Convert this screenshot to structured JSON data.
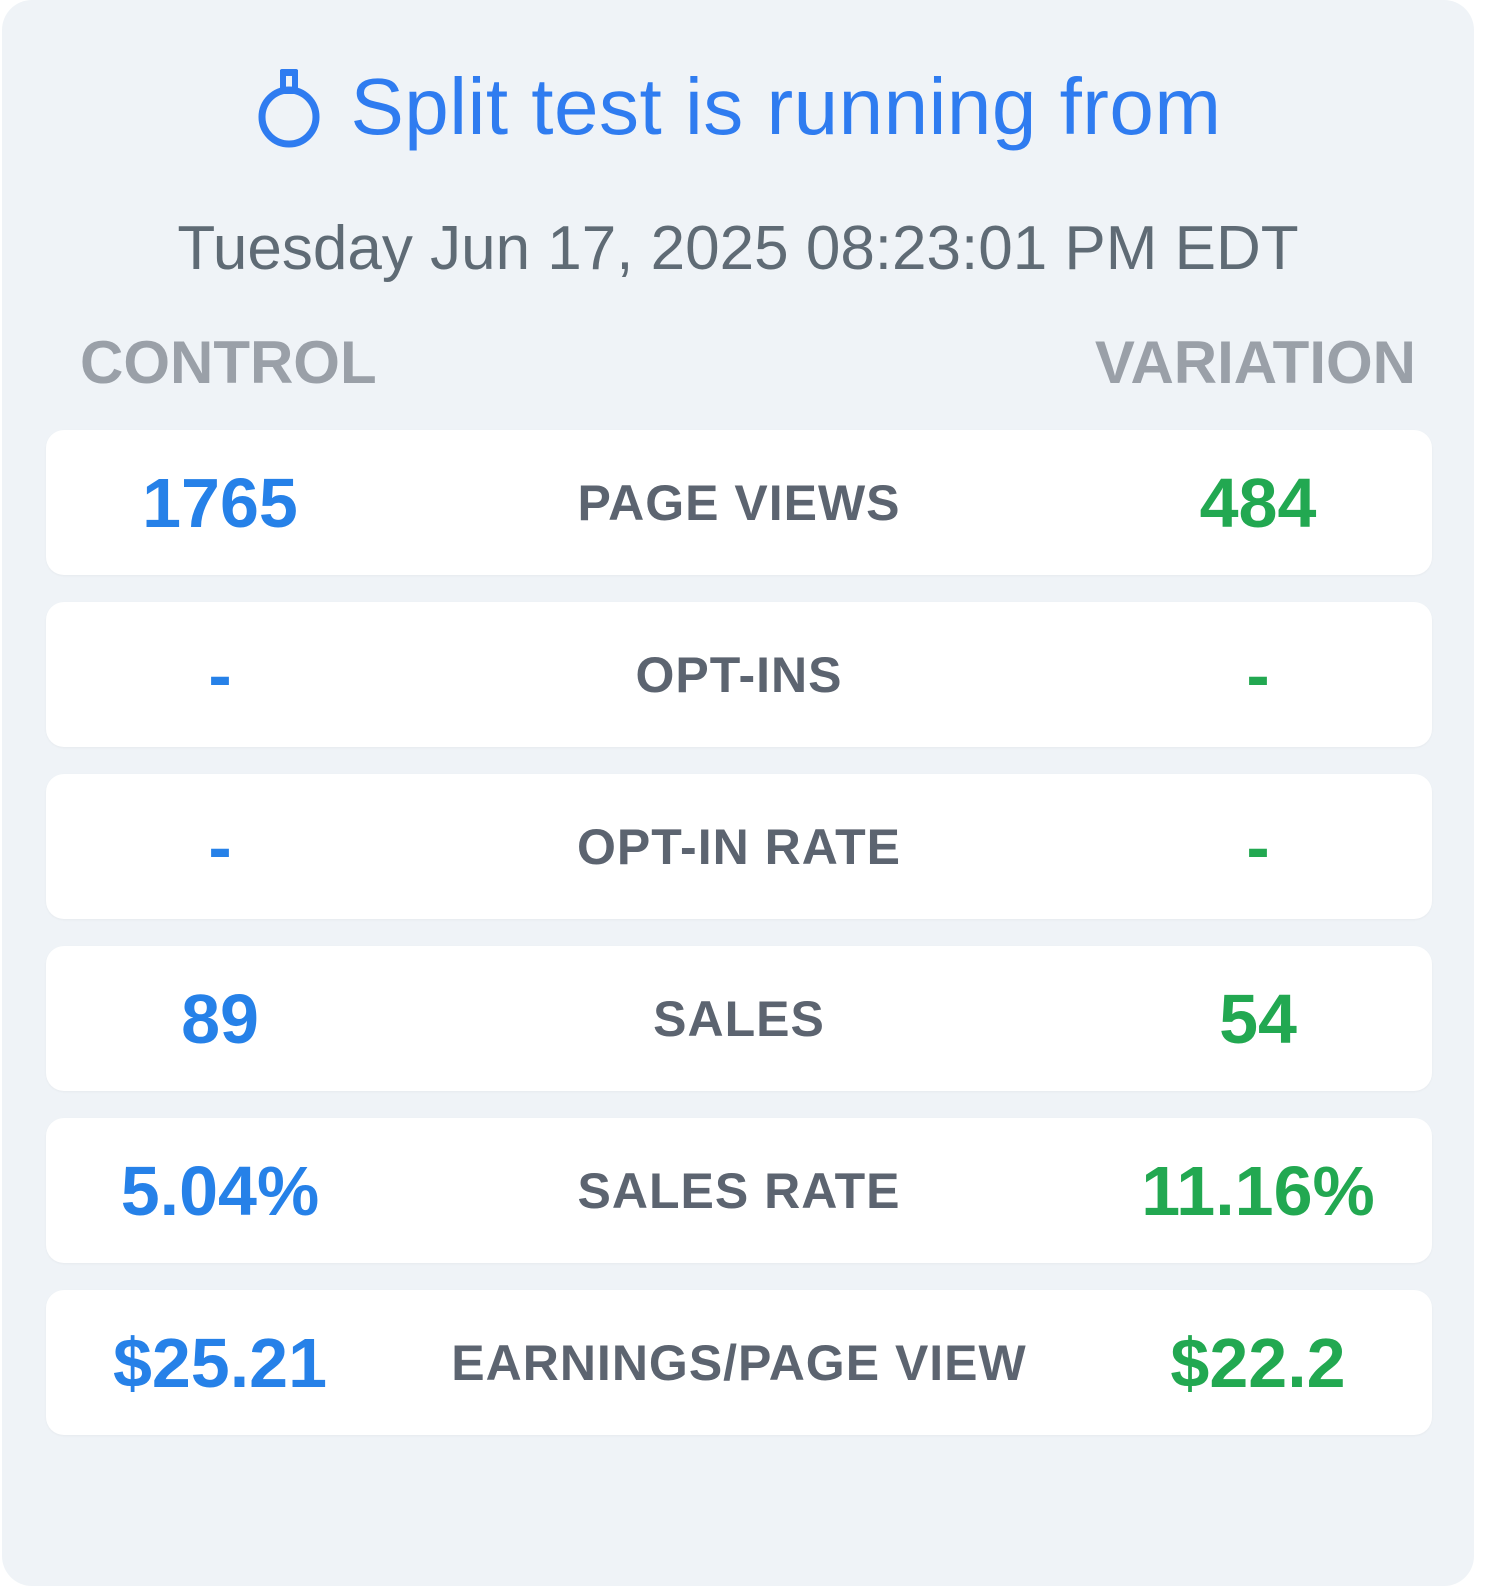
{
  "header": {
    "title": "Split test is running from",
    "icon": "stopwatch-icon",
    "date": "Tuesday Jun 17, 2025 08:23:01 PM EDT"
  },
  "columns": {
    "control": "CONTROL",
    "variation": "VARIATION"
  },
  "colors": {
    "accent_blue": "#2f7cf0",
    "control_value": "#2681e8",
    "variation_value": "#22a851",
    "label": "#5c6470",
    "column_header": "#9aa0a8",
    "card_background": "#eff3f7"
  },
  "rows": [
    {
      "label": "PAGE VIEWS",
      "control": "1765",
      "variation": "484"
    },
    {
      "label": "OPT-INS",
      "control": "-",
      "variation": "-"
    },
    {
      "label": "OPT-IN RATE",
      "control": "-",
      "variation": "-"
    },
    {
      "label": "SALES",
      "control": "89",
      "variation": "54"
    },
    {
      "label": "SALES RATE",
      "control": "5.04%",
      "variation": "11.16%"
    },
    {
      "label": "EARNINGS/PAGE VIEW",
      "control": "$25.21",
      "variation": "$22.2"
    }
  ]
}
